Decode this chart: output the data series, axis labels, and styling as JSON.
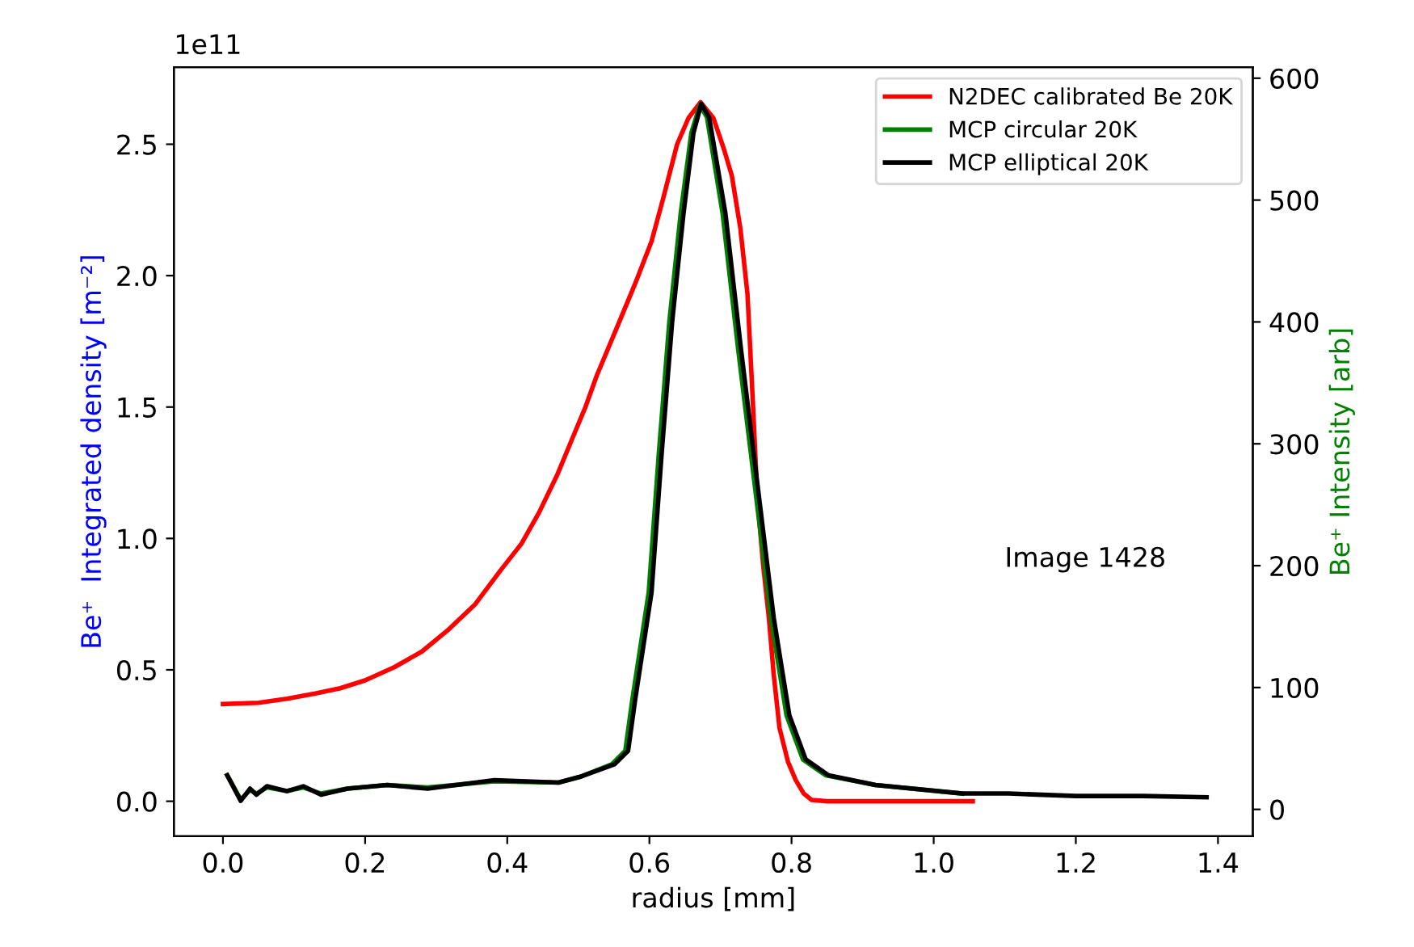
{
  "chart_data": {
    "type": "line",
    "xlabel": "radius [mm]",
    "ylabel": "Be⁺  Integrated density [m⁻²]",
    "y2label": "Be⁺ Intensity [arb]",
    "legend": "top right",
    "grid": false,
    "marker": "none",
    "line_style": "solid",
    "xlim": [
      -0.069,
      1.449
    ],
    "ylim": [
      -0.133,
      2.793
    ],
    "y2lim": [
      -22,
      609
    ],
    "xticks": [
      {
        "value": 0,
        "label": "0.0"
      },
      {
        "value": 0.2,
        "label": "0.2"
      },
      {
        "value": 0.4,
        "label": "0.4"
      },
      {
        "value": 0.6,
        "label": "0.6"
      },
      {
        "value": 0.8,
        "label": "0.8"
      },
      {
        "value": 1.0,
        "label": "1.0"
      },
      {
        "value": 1.2,
        "label": "1.2"
      },
      {
        "value": 1.4,
        "label": "1.4"
      }
    ],
    "yticks": [
      {
        "value": 0,
        "label": "0.0"
      },
      {
        "value": 0.5,
        "label": "0.5"
      },
      {
        "value": 1.0,
        "label": "1.0"
      },
      {
        "value": 1.5,
        "label": "1.5"
      },
      {
        "value": 2.0,
        "label": "2.0"
      },
      {
        "value": 2.5,
        "label": "2.5"
      }
    ],
    "y2ticks": [
      0,
      100,
      200,
      300,
      400,
      500,
      600
    ],
    "annotations": [
      "1e11",
      "Image 1428"
    ],
    "series": [
      {
        "name": "N2DEC calibrated Be 20K",
        "color": "#ff0000",
        "x": [
          0,
          0.05,
          0.09,
          0.13,
          0.165,
          0.2,
          0.241,
          0.28,
          0.316,
          0.355,
          0.391,
          0.42,
          0.445,
          0.47,
          0.49,
          0.51,
          0.526,
          0.557,
          0.58,
          0.603,
          0.62,
          0.639,
          0.655,
          0.672,
          0.69,
          0.705,
          0.716,
          0.728,
          0.738,
          0.745,
          0.752,
          0.76,
          0.768,
          0.775,
          0.783,
          0.795,
          0.806,
          0.817,
          0.828,
          0.85,
          0.9,
          1.0,
          1.055
        ],
        "values": [
          0.37,
          0.375,
          0.39,
          0.41,
          0.43,
          0.46,
          0.51,
          0.57,
          0.65,
          0.75,
          0.88,
          0.98,
          1.1,
          1.24,
          1.37,
          1.5,
          1.62,
          1.82,
          1.97,
          2.13,
          2.3,
          2.5,
          2.6,
          2.66,
          2.6,
          2.48,
          2.38,
          2.18,
          1.93,
          1.55,
          1.15,
          0.9,
          0.7,
          0.48,
          0.28,
          0.15,
          0.08,
          0.03,
          0.005,
          0.0,
          0.0,
          0.0,
          0.0
        ]
      },
      {
        "name": "MCP circular 20K",
        "color": "#008000",
        "axis": "y2",
        "x": [
          0.006,
          0.025,
          0.038,
          0.047,
          0.062,
          0.09,
          0.113,
          0.138,
          0.175,
          0.231,
          0.288,
          0.382,
          0.472,
          0.504,
          0.547,
          0.566,
          0.576,
          0.599,
          0.613,
          0.628,
          0.644,
          0.659,
          0.671,
          0.681,
          0.703,
          0.725,
          0.748,
          0.771,
          0.793,
          0.816,
          0.848,
          0.918,
          1.04
        ],
        "values": [
          28,
          8,
          16,
          13,
          18,
          15,
          18,
          13,
          17,
          20,
          18,
          23,
          22,
          27,
          37,
          48,
          90,
          178,
          290,
          400,
          489,
          555,
          578,
          568,
          489,
          377,
          267,
          157,
          77,
          41,
          28,
          20,
          13
        ]
      },
      {
        "name": "MCP elliptical 20K",
        "color": "#000000",
        "axis": "y2",
        "x": [
          0.006,
          0.025,
          0.038,
          0.047,
          0.062,
          0.09,
          0.113,
          0.138,
          0.175,
          0.231,
          0.288,
          0.382,
          0.472,
          0.504,
          0.551,
          0.57,
          0.58,
          0.603,
          0.617,
          0.632,
          0.648,
          0.662,
          0.673,
          0.684,
          0.707,
          0.729,
          0.752,
          0.775,
          0.797,
          0.82,
          0.852,
          0.918,
          1.04,
          1.106,
          1.2,
          1.294,
          1.384
        ],
        "values": [
          28,
          7,
          17,
          12,
          19,
          15,
          19,
          12,
          17,
          20,
          17,
          24,
          22,
          27,
          37,
          48,
          90,
          178,
          290,
          400,
          489,
          555,
          579,
          568,
          489,
          377,
          267,
          157,
          77,
          41,
          28,
          20,
          13,
          13,
          11,
          11,
          10
        ]
      }
    ]
  }
}
